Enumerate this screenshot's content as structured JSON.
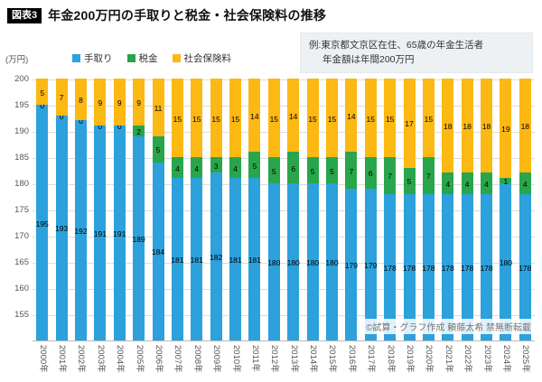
{
  "header": {
    "badge": "図表3"
  },
  "footer": {
    "copyright": "©試算・グラフ作成 頼藤太希 禁無断転載"
  },
  "chart_data": {
    "type": "bar",
    "stacked": true,
    "title": "年金200万円の手取りと税金・社会保険料の推移",
    "y_unit": "(万円)",
    "annotation": {
      "line1": "例:東京都文京区在住、65歳の年金生活者",
      "line2": "年金額は年間200万円"
    },
    "categories": [
      "2000年",
      "2001年",
      "2002年",
      "2003年",
      "2004年",
      "2005年",
      "2006年",
      "2007年",
      "2008年",
      "2009年",
      "2010年",
      "2011年",
      "2012年",
      "2013年",
      "2014年",
      "2015年",
      "2016年",
      "2017年",
      "2018年",
      "2019年",
      "2020年",
      "2021年",
      "2022年",
      "2023年",
      "2024年",
      "2025年"
    ],
    "series": [
      {
        "name": "手取り",
        "color": "#2CA1DC",
        "values": [
          195,
          193,
          192,
          191,
          191,
          189,
          184,
          181,
          181,
          182,
          181,
          181,
          180,
          180,
          180,
          180,
          179,
          179,
          178,
          178,
          178,
          178,
          178,
          178,
          180,
          178
        ]
      },
      {
        "name": "税金",
        "color": "#29A54B",
        "values": [
          0,
          0,
          0,
          0,
          0,
          2,
          5,
          4,
          4,
          3,
          4,
          5,
          5,
          6,
          5,
          5,
          7,
          6,
          7,
          5,
          7,
          4,
          4,
          4,
          1,
          4
        ]
      },
      {
        "name": "社会保険料",
        "color": "#FCB813",
        "values": [
          5,
          7,
          8,
          9,
          9,
          9,
          11,
          15,
          15,
          15,
          15,
          14,
          15,
          14,
          15,
          15,
          14,
          15,
          15,
          17,
          15,
          18,
          18,
          18,
          19,
          18
        ]
      }
    ],
    "ylim": [
      150,
      200
    ],
    "yticks": [
      155,
      160,
      165,
      170,
      175,
      180,
      185,
      190,
      195,
      200
    ],
    "grid": true,
    "legend_position": "top",
    "value_labels": true
  }
}
